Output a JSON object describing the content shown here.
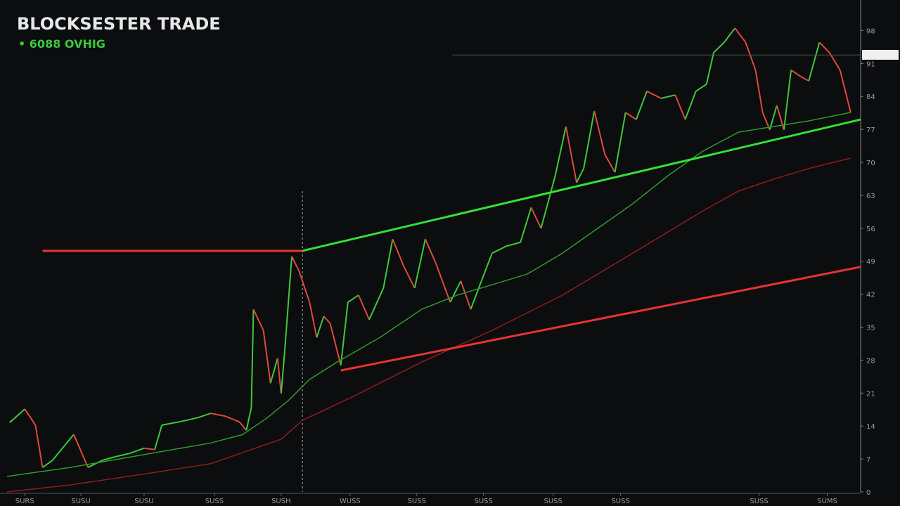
{
  "chart_data": {
    "type": "line",
    "title": "BLOCKSESTER TRADE",
    "subtitle": "• 6088 OVHIG",
    "subtitle_color": "#3cc83c",
    "xlim": [
      0,
      120
    ],
    "ylim": [
      0,
      100
    ],
    "xticks": [
      {
        "value": 2.5,
        "label": "SURS"
      },
      {
        "value": 10.4,
        "label": "SUSU"
      },
      {
        "value": 19.3,
        "label": "SUSU"
      },
      {
        "value": 29.2,
        "label": "SUSS"
      },
      {
        "value": 38.6,
        "label": "SUSH"
      },
      {
        "value": 48.3,
        "label": "WUSS"
      },
      {
        "value": 57.7,
        "label": "SUSS"
      },
      {
        "value": 67.1,
        "label": "SUSS"
      },
      {
        "value": 76.9,
        "label": "SUSS"
      },
      {
        "value": 86.4,
        "label": "SUSS"
      },
      {
        "value": 105.9,
        "label": "SUSS"
      },
      {
        "value": 115.5,
        "label": "SUMS"
      }
    ],
    "yticks": [
      0,
      7,
      14,
      21,
      28,
      35,
      42,
      49,
      56,
      63,
      70,
      77,
      84,
      91,
      98
    ],
    "series": [
      {
        "kind": "price",
        "up_color": "#3cc83c",
        "down_color": "#e0483a",
        "x": [
          0.5,
          2.5,
          4,
          5,
          6.4,
          8.4,
          9.4,
          11.4,
          13.4,
          15.3,
          17.3,
          19.3,
          20.8,
          21.8,
          24.3,
          26.7,
          28.7,
          30.7,
          32.7,
          33.7,
          34.4,
          34.7,
          36.1,
          37.1,
          38.1,
          38.6,
          39.1,
          40.1,
          41.1,
          42.6,
          43.6,
          44.6,
          45.5,
          47,
          48,
          49.5,
          51,
          53,
          54.3,
          55.9,
          57.4,
          58.9,
          60.4,
          62.4,
          63.9,
          65.3,
          66.8,
          68.3,
          70.3,
          72.3,
          73.8,
          75.2,
          77.2,
          78.7,
          80.2,
          81.2,
          82.7,
          84.2,
          85.6,
          87.1,
          88.6,
          90.1,
          92.1,
          94.1,
          95.5,
          97,
          98.5,
          99.5,
          101,
          102.5,
          104,
          105.4,
          106.4,
          107.4,
          108.4,
          109.4,
          110.4,
          111.9,
          112.9,
          114.4,
          115.8,
          117.3,
          118.8
        ],
        "values": [
          14.9,
          17.6,
          14.2,
          5.2,
          6.7,
          10.4,
          12.2,
          5.2,
          6.7,
          7.5,
          8.2,
          9.3,
          9.0,
          14.2,
          14.9,
          15.7,
          16.7,
          16.1,
          14.9,
          13.1,
          17.9,
          38.8,
          34.3,
          23.1,
          28.4,
          20.9,
          29.9,
          50.0,
          47.0,
          40.3,
          32.8,
          37.3,
          35.8,
          26.9,
          40.3,
          41.8,
          36.6,
          43.3,
          53.7,
          47.8,
          43.3,
          53.7,
          48.5,
          40.3,
          44.8,
          38.8,
          44.8,
          50.7,
          52.2,
          53.0,
          60.4,
          56.0,
          67.2,
          77.6,
          65.7,
          68.7,
          80.9,
          71.6,
          67.9,
          80.6,
          79.1,
          85.1,
          83.6,
          84.3,
          79.1,
          85.1,
          86.6,
          93.3,
          95.5,
          98.5,
          95.5,
          89.6,
          80.6,
          76.9,
          82.1,
          76.9,
          89.6,
          88.1,
          87.3,
          95.5,
          93.3,
          89.6,
          80.6
        ]
      },
      {
        "kind": "ma",
        "color": "#2f9a2f",
        "x": [
          0,
          8.9,
          18.8,
          28.7,
          33.2,
          36.6,
          39.6,
          42.6,
          46.5,
          52.5,
          58.4,
          63.4,
          68.3,
          73.3,
          78.2,
          83.2,
          88.1,
          93.1,
          98,
          103,
          107.9,
          112.9,
          118.8
        ],
        "values": [
          3.3,
          5.2,
          7.8,
          10.4,
          12.2,
          15.7,
          19.4,
          23.9,
          27.6,
          32.8,
          38.8,
          41.8,
          44.0,
          46.3,
          50.7,
          56.0,
          61.2,
          67.2,
          72.4,
          76.4,
          77.6,
          78.8,
          80.6
        ]
      },
      {
        "kind": "ma",
        "color": "#8e1c1c",
        "x": [
          0,
          8.9,
          18.8,
          28.7,
          38.6,
          41.6,
          48.5,
          58.4,
          68.3,
          78.2,
          88.1,
          98,
          103,
          107.9,
          112.9,
          118.8
        ],
        "values": [
          0,
          1.5,
          3.7,
          6.0,
          11.2,
          15.2,
          20.1,
          27.6,
          34.3,
          41.8,
          50.7,
          59.7,
          63.9,
          66.4,
          68.7,
          70.9
        ]
      }
    ],
    "trendlines": [
      {
        "color": "#33e033",
        "x": [
          41.6,
          120.2
        ],
        "values": [
          51.2,
          79.1
        ]
      },
      {
        "color": "#e83232",
        "x": [
          47,
          120.2
        ],
        "values": [
          25.8,
          47.8
        ]
      },
      {
        "color": "#e83232",
        "x": [
          5,
          41.6
        ],
        "values": [
          51.2,
          51.2
        ]
      },
      {
        "color": "#555555",
        "x": [
          62.7,
          120.2
        ],
        "values": [
          92.8,
          92.8
        ]
      }
    ],
    "vlines": [
      41.6
    ]
  }
}
